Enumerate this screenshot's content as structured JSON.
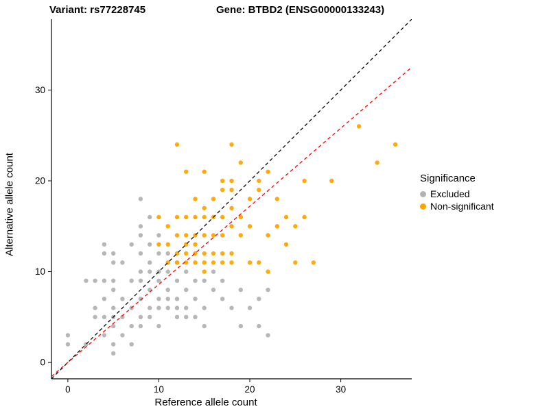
{
  "titles": {
    "variant": "Variant: rs77228745",
    "gene": "Gene: BTBD2 (ENSG00000133243)"
  },
  "axes": {
    "x_label": "Reference allele count",
    "y_label": "Alternative allele count",
    "x_ticks": [
      0,
      10,
      20,
      30
    ],
    "y_ticks": [
      0,
      10,
      20,
      30
    ]
  },
  "legend": {
    "title": "Significance",
    "items": [
      {
        "label": "Excluded",
        "color": "#b3b3b3"
      },
      {
        "label": "Non-significant",
        "color": "#ffa500"
      }
    ]
  },
  "chart_data": {
    "type": "scatter",
    "title": "Variant: rs77228745 — Gene: BTBD2 (ENSG00000133243)",
    "xlabel": "Reference allele count",
    "ylabel": "Alternative allele count",
    "xlim": [
      -1.8,
      37.8
    ],
    "ylim": [
      -1.8,
      37.8
    ],
    "grid": false,
    "legend_position": "right",
    "legend_title": "Significance",
    "point_radius": 3.2,
    "series": [
      {
        "name": "Excluded",
        "color": "#b3b3b3",
        "points": [
          [
            0,
            2
          ],
          [
            0,
            3
          ],
          [
            2,
            2
          ],
          [
            2,
            9
          ],
          [
            3,
            5
          ],
          [
            3,
            6
          ],
          [
            3,
            9
          ],
          [
            4,
            3
          ],
          [
            4,
            5
          ],
          [
            4,
            7
          ],
          [
            4,
            9
          ],
          [
            4,
            12
          ],
          [
            4,
            13
          ],
          [
            5,
            1
          ],
          [
            5,
            2
          ],
          [
            5,
            4
          ],
          [
            5,
            5
          ],
          [
            5,
            6
          ],
          [
            5,
            8
          ],
          [
            5,
            9
          ],
          [
            5,
            11
          ],
          [
            5,
            12
          ],
          [
            6,
            3
          ],
          [
            6,
            5
          ],
          [
            6,
            7
          ],
          [
            6,
            11
          ],
          [
            7,
            2
          ],
          [
            7,
            4
          ],
          [
            7,
            6
          ],
          [
            7,
            9
          ],
          [
            7,
            13
          ],
          [
            8,
            4
          ],
          [
            8,
            5
          ],
          [
            8,
            7
          ],
          [
            8,
            9
          ],
          [
            8,
            10
          ],
          [
            8,
            12
          ],
          [
            8,
            14
          ],
          [
            8,
            15
          ],
          [
            8,
            18
          ],
          [
            9,
            5
          ],
          [
            9,
            6
          ],
          [
            9,
            8
          ],
          [
            9,
            10
          ],
          [
            9,
            11
          ],
          [
            9,
            13
          ],
          [
            9,
            16
          ],
          [
            10,
            4
          ],
          [
            10,
            6
          ],
          [
            10,
            7
          ],
          [
            10,
            9
          ],
          [
            10,
            10
          ],
          [
            10,
            12
          ],
          [
            10,
            14
          ],
          [
            11,
            6
          ],
          [
            11,
            7
          ],
          [
            11,
            8
          ],
          [
            11,
            10
          ],
          [
            11,
            12
          ],
          [
            12,
            5
          ],
          [
            12,
            6
          ],
          [
            12,
            7
          ],
          [
            12,
            9
          ],
          [
            12,
            11
          ],
          [
            13,
            5
          ],
          [
            13,
            6
          ],
          [
            13,
            8
          ],
          [
            13,
            10
          ],
          [
            14,
            5
          ],
          [
            14,
            7
          ],
          [
            14,
            9
          ],
          [
            15,
            4
          ],
          [
            15,
            6
          ],
          [
            15,
            9
          ],
          [
            16,
            8
          ],
          [
            16,
            10
          ],
          [
            17,
            7
          ],
          [
            17,
            9
          ],
          [
            18,
            6
          ],
          [
            19,
            4
          ],
          [
            19,
            8
          ],
          [
            20,
            6
          ],
          [
            21,
            4
          ],
          [
            21,
            7
          ],
          [
            22,
            3
          ],
          [
            22,
            8
          ]
        ]
      },
      {
        "name": "Non-significant",
        "color": "#ffa500",
        "points": [
          [
            10,
            13
          ],
          [
            10,
            16
          ],
          [
            11,
            11
          ],
          [
            11,
            13
          ],
          [
            11,
            15
          ],
          [
            12,
            11
          ],
          [
            12,
            12
          ],
          [
            12,
            14
          ],
          [
            12,
            16
          ],
          [
            12,
            24
          ],
          [
            13,
            11
          ],
          [
            13,
            12
          ],
          [
            13,
            13
          ],
          [
            13,
            14
          ],
          [
            13,
            16
          ],
          [
            13,
            21
          ],
          [
            14,
            11
          ],
          [
            14,
            12
          ],
          [
            14,
            13
          ],
          [
            14,
            14
          ],
          [
            14,
            16
          ],
          [
            14,
            18
          ],
          [
            15,
            10
          ],
          [
            15,
            11
          ],
          [
            15,
            12
          ],
          [
            15,
            14
          ],
          [
            15,
            16
          ],
          [
            15,
            17
          ],
          [
            15,
            21
          ],
          [
            16,
            11
          ],
          [
            16,
            12
          ],
          [
            16,
            14
          ],
          [
            16,
            16
          ],
          [
            16,
            18
          ],
          [
            17,
            11
          ],
          [
            17,
            12
          ],
          [
            17,
            14
          ],
          [
            17,
            16
          ],
          [
            17,
            19
          ],
          [
            17,
            20
          ],
          [
            18,
            11
          ],
          [
            18,
            12
          ],
          [
            18,
            15
          ],
          [
            18,
            17
          ],
          [
            18,
            19
          ],
          [
            18,
            20
          ],
          [
            18,
            24
          ],
          [
            19,
            14
          ],
          [
            19,
            16
          ],
          [
            19,
            22
          ],
          [
            20,
            11
          ],
          [
            20,
            15
          ],
          [
            20,
            18
          ],
          [
            21,
            11
          ],
          [
            21,
            19
          ],
          [
            21,
            20
          ],
          [
            22,
            10
          ],
          [
            22,
            14
          ],
          [
            22,
            21
          ],
          [
            23,
            15
          ],
          [
            23,
            18
          ],
          [
            24,
            13
          ],
          [
            24,
            16
          ],
          [
            25,
            11
          ],
          [
            25,
            15
          ],
          [
            26,
            16
          ],
          [
            26,
            20
          ],
          [
            27,
            11
          ],
          [
            29,
            20
          ],
          [
            32,
            26
          ],
          [
            34,
            22
          ],
          [
            36,
            24
          ]
        ]
      }
    ],
    "lines": [
      {
        "name": "identity-line",
        "slope": 1.0,
        "intercept": 0,
        "color": "#000000",
        "dash": "5,4"
      },
      {
        "name": "fit-line",
        "slope": 0.86,
        "intercept": 0,
        "color": "#ff0000",
        "dash": "5,4"
      }
    ]
  }
}
